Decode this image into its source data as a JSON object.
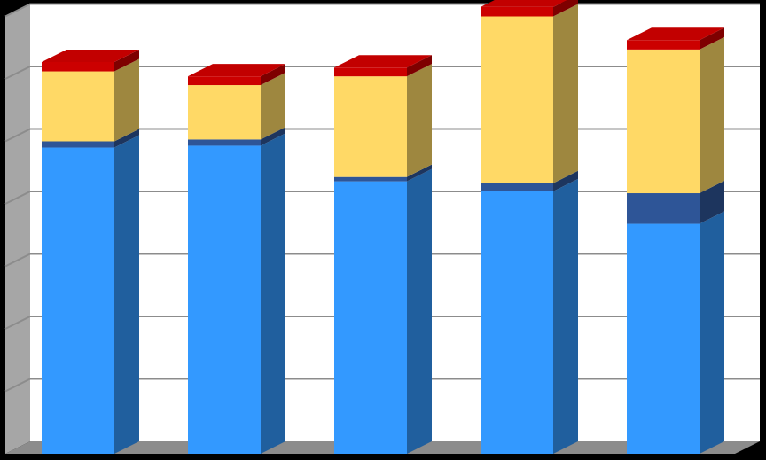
{
  "chart_data": {
    "type": "bar",
    "stacked": true,
    "three_d": true,
    "title": "",
    "xlabel": "",
    "ylabel": "",
    "categories": [
      "",
      "",
      "",
      "",
      ""
    ],
    "ylim": [
      0,
      7
    ],
    "grid": true,
    "legend": "none",
    "series": [
      {
        "values": [
          4.9,
          4.93,
          4.36,
          4.2,
          3.68
        ],
        "color": "#3399FF"
      },
      {
        "values": [
          0.1,
          0.1,
          0.07,
          0.13,
          0.49
        ],
        "color": "#2E5597"
      },
      {
        "values": [
          1.12,
          0.87,
          1.61,
          2.67,
          2.3
        ],
        "color": "#FFD966"
      },
      {
        "values": [
          0.15,
          0.14,
          0.14,
          0.15,
          0.15
        ],
        "color": "#CC0000"
      }
    ]
  },
  "colors": {
    "background": "#000000",
    "plot_area": "#FFFFFF",
    "wall": "#A6A6A6",
    "floor": "#8C8C8C",
    "gridline": "#8C8C8C"
  }
}
